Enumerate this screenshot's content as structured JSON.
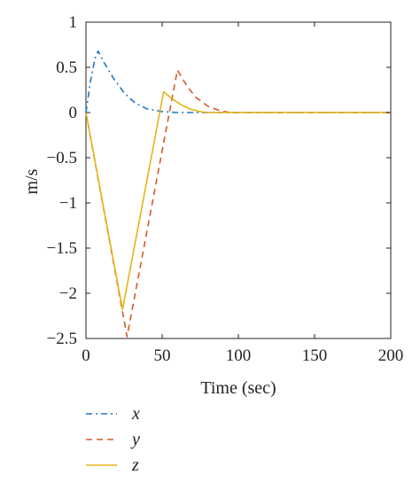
{
  "chart_data": {
    "type": "line",
    "title": "",
    "xlabel": "Time (sec)",
    "ylabel": "m/s",
    "xlim": [
      0,
      200
    ],
    "ylim": [
      -2.5,
      1
    ],
    "xticks": [
      0,
      50,
      100,
      150,
      200
    ],
    "xtick_labels": [
      "0",
      "50",
      "100",
      "150",
      "200"
    ],
    "yticks": [
      1,
      0.5,
      0,
      -0.5,
      -1,
      -1.5,
      -2,
      -2.5
    ],
    "ytick_labels": [
      "1",
      "0.5",
      "0",
      "−0.5",
      "−1",
      "−1.5",
      "−2",
      "−2.5"
    ],
    "grid": false,
    "legend_position": "below plot",
    "series": [
      {
        "name": "x",
        "style": "dash-dot",
        "color": "#1f77c4",
        "points": [
          [
            0,
            0
          ],
          [
            3,
            0.35
          ],
          [
            6,
            0.6
          ],
          [
            8,
            0.68
          ],
          [
            12,
            0.55
          ],
          [
            18,
            0.38
          ],
          [
            25,
            0.22
          ],
          [
            32,
            0.11
          ],
          [
            40,
            0.04
          ],
          [
            50,
            0.01
          ],
          [
            60,
            0
          ],
          [
            200,
            0
          ]
        ]
      },
      {
        "name": "y",
        "style": "dashed",
        "color": "#d45a2a",
        "points": [
          [
            0,
            0
          ],
          [
            27,
            -2.48
          ],
          [
            60,
            0.47
          ],
          [
            66,
            0.3
          ],
          [
            72,
            0.17
          ],
          [
            80,
            0.07
          ],
          [
            88,
            0.02
          ],
          [
            95,
            0
          ],
          [
            200,
            0
          ]
        ]
      },
      {
        "name": "z",
        "style": "solid",
        "color": "#e3b418",
        "points": [
          [
            0,
            0
          ],
          [
            24,
            -2.18
          ],
          [
            51,
            0.23
          ],
          [
            56,
            0.16
          ],
          [
            62,
            0.09
          ],
          [
            68,
            0.04
          ],
          [
            75,
            0.01
          ],
          [
            80,
            0
          ],
          [
            200,
            0
          ]
        ]
      }
    ]
  }
}
